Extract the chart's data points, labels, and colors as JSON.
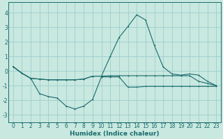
{
  "xlabel": "Humidex (Indice chaleur)",
  "xlim": [
    -0.5,
    23.5
  ],
  "ylim": [
    -3.5,
    4.7
  ],
  "yticks": [
    -3,
    -2,
    -1,
    0,
    1,
    2,
    3,
    4
  ],
  "xticks": [
    0,
    1,
    2,
    3,
    4,
    5,
    6,
    7,
    8,
    9,
    10,
    11,
    12,
    13,
    14,
    15,
    16,
    17,
    18,
    19,
    20,
    21,
    22,
    23
  ],
  "bg_color": "#c8e8e0",
  "grid_color": "#9ecece",
  "line_color": "#1a6b6b",
  "line1_x": [
    0,
    1,
    2,
    3,
    4,
    5,
    6,
    7,
    8,
    9,
    10,
    11,
    12,
    13,
    14,
    15,
    16,
    17,
    18,
    19,
    20,
    21,
    22,
    23
  ],
  "line1_y": [
    0.3,
    -0.15,
    -0.5,
    -1.55,
    -1.75,
    -1.85,
    -2.4,
    -2.6,
    -2.4,
    -1.95,
    -0.4,
    -0.4,
    -0.4,
    -1.1,
    -1.1,
    -1.05,
    -1.05,
    -1.05,
    -1.05,
    -1.05,
    -1.05,
    -1.05,
    -1.05,
    -1.05
  ],
  "line2_x": [
    0,
    1,
    2,
    3,
    4,
    5,
    6,
    7,
    8,
    9,
    10,
    11,
    12,
    13,
    14,
    15,
    16,
    17,
    18,
    19,
    20,
    21,
    22,
    23
  ],
  "line2_y": [
    0.3,
    -0.15,
    -0.5,
    -0.55,
    -0.6,
    -0.6,
    -0.6,
    -0.6,
    -0.55,
    -0.35,
    -0.35,
    -0.32,
    -0.32,
    -0.32,
    -0.32,
    -0.32,
    -0.32,
    -0.32,
    -0.32,
    -0.32,
    -0.32,
    -0.7,
    -0.85,
    -1.0
  ],
  "line3_x": [
    0,
    1,
    2,
    3,
    4,
    5,
    6,
    7,
    8,
    9,
    10,
    11,
    12,
    13,
    14,
    15,
    16,
    17,
    18,
    19,
    20,
    21,
    22,
    23
  ],
  "line3_y": [
    0.3,
    -0.15,
    -0.5,
    -0.55,
    -0.6,
    -0.6,
    -0.6,
    -0.6,
    -0.55,
    -0.35,
    -0.35,
    1.0,
    2.3,
    3.05,
    3.85,
    3.5,
    1.75,
    0.28,
    -0.2,
    -0.28,
    -0.2,
    -0.28,
    -0.7,
    -1.0
  ],
  "xlabel_fontsize": 6.5,
  "tick_fontsize": 5.5,
  "lw": 0.8,
  "ms": 2.0
}
